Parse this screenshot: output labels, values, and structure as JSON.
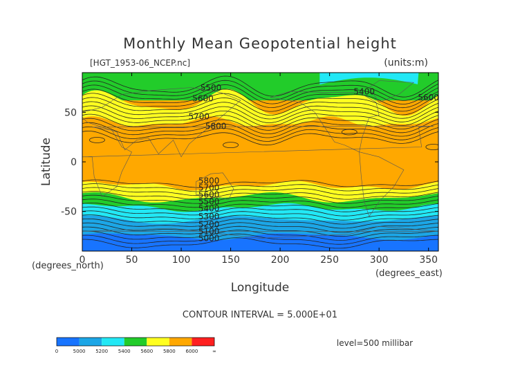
{
  "chart_data": {
    "type": "heatmap",
    "title": "Monthly Mean Geopotential height",
    "file_label": "[HGT_1953-06_NCEP.nc]",
    "units_label": "(units:m)",
    "xlabel": "Longitude",
    "ylabel": "Latitude",
    "x_unit_label": "(degrees_east)",
    "y_unit_label": "(degrees_north)",
    "xlim": [
      0,
      360
    ],
    "ylim": [
      -90,
      90
    ],
    "x_ticks": [
      0,
      50,
      100,
      150,
      200,
      250,
      300,
      350
    ],
    "y_ticks": [
      -50,
      0,
      50
    ],
    "contour_interval_label": "CONTOUR INTERVAL = 5.000E+01",
    "level_label": "level=500 millibar",
    "colorbar": {
      "labels": [
        "0",
        "5000",
        "5200",
        "5400",
        "5600",
        "5800",
        "6000",
        "∞"
      ],
      "colors": [
        "#1874ff",
        "#1ca6e6",
        "#22e8f5",
        "#22cc2a",
        "#ffff20",
        "#ffa800",
        "#ff2020"
      ]
    },
    "contour_labels": [
      {
        "text": "5500",
        "lon": 130,
        "lat": 72
      },
      {
        "text": "5600",
        "lon": 122,
        "lat": 61
      },
      {
        "text": "5700",
        "lon": 118,
        "lat": 43
      },
      {
        "text": "5800",
        "lon": 135,
        "lat": 33
      },
      {
        "text": "5400",
        "lon": 285,
        "lat": 68
      },
      {
        "text": "5600",
        "lon": 350,
        "lat": 62
      },
      {
        "text": "5800",
        "lon": 128,
        "lat": -22
      },
      {
        "text": "5700",
        "lon": 128,
        "lat": -29
      },
      {
        "text": "5600",
        "lon": 128,
        "lat": -36
      },
      {
        "text": "5500",
        "lon": 128,
        "lat": -43
      },
      {
        "text": "5400",
        "lon": 128,
        "lat": -50
      },
      {
        "text": "5300",
        "lon": 128,
        "lat": -58
      },
      {
        "text": "5200",
        "lon": 128,
        "lat": -66
      },
      {
        "text": "5100",
        "lon": 128,
        "lat": -73
      },
      {
        "text": "5000",
        "lon": 128,
        "lat": -80
      }
    ]
  }
}
